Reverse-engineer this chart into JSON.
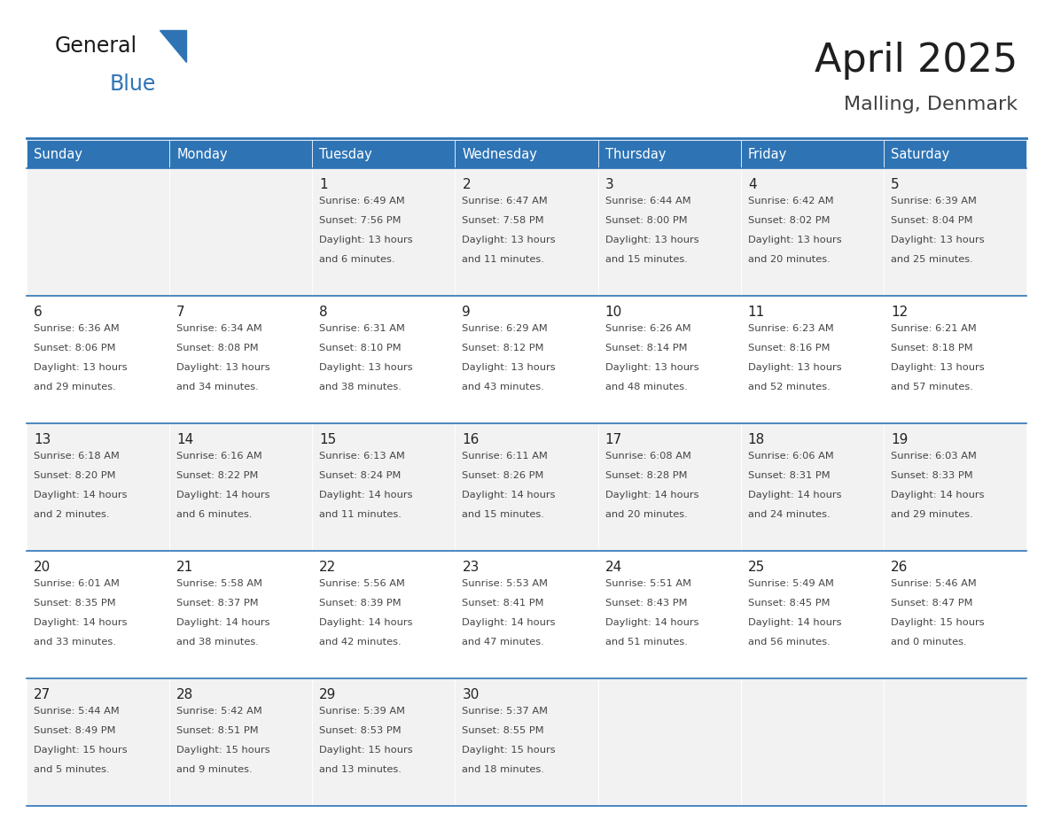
{
  "title": "April 2025",
  "subtitle": "Malling, Denmark",
  "header_color": "#2E74B5",
  "header_text_color": "#FFFFFF",
  "cell_bg_color": "#F2F2F2",
  "cell_bg_alt_color": "#FFFFFF",
  "border_color": "#2E74B5",
  "day_names": [
    "Sunday",
    "Monday",
    "Tuesday",
    "Wednesday",
    "Thursday",
    "Friday",
    "Saturday"
  ],
  "title_color": "#1F1F1F",
  "subtitle_color": "#404040",
  "logo_general_color": "#1A1A1A",
  "logo_blue_color": "#2E74B5",
  "days": [
    {
      "date": 1,
      "col": 2,
      "row": 0,
      "sunrise": "6:49 AM",
      "sunset": "7:56 PM",
      "daylight_h": "13 hours",
      "daylight_m": "and 6 minutes."
    },
    {
      "date": 2,
      "col": 3,
      "row": 0,
      "sunrise": "6:47 AM",
      "sunset": "7:58 PM",
      "daylight_h": "13 hours",
      "daylight_m": "and 11 minutes."
    },
    {
      "date": 3,
      "col": 4,
      "row": 0,
      "sunrise": "6:44 AM",
      "sunset": "8:00 PM",
      "daylight_h": "13 hours",
      "daylight_m": "and 15 minutes."
    },
    {
      "date": 4,
      "col": 5,
      "row": 0,
      "sunrise": "6:42 AM",
      "sunset": "8:02 PM",
      "daylight_h": "13 hours",
      "daylight_m": "and 20 minutes."
    },
    {
      "date": 5,
      "col": 6,
      "row": 0,
      "sunrise": "6:39 AM",
      "sunset": "8:04 PM",
      "daylight_h": "13 hours",
      "daylight_m": "and 25 minutes."
    },
    {
      "date": 6,
      "col": 0,
      "row": 1,
      "sunrise": "6:36 AM",
      "sunset": "8:06 PM",
      "daylight_h": "13 hours",
      "daylight_m": "and 29 minutes."
    },
    {
      "date": 7,
      "col": 1,
      "row": 1,
      "sunrise": "6:34 AM",
      "sunset": "8:08 PM",
      "daylight_h": "13 hours",
      "daylight_m": "and 34 minutes."
    },
    {
      "date": 8,
      "col": 2,
      "row": 1,
      "sunrise": "6:31 AM",
      "sunset": "8:10 PM",
      "daylight_h": "13 hours",
      "daylight_m": "and 38 minutes."
    },
    {
      "date": 9,
      "col": 3,
      "row": 1,
      "sunrise": "6:29 AM",
      "sunset": "8:12 PM",
      "daylight_h": "13 hours",
      "daylight_m": "and 43 minutes."
    },
    {
      "date": 10,
      "col": 4,
      "row": 1,
      "sunrise": "6:26 AM",
      "sunset": "8:14 PM",
      "daylight_h": "13 hours",
      "daylight_m": "and 48 minutes."
    },
    {
      "date": 11,
      "col": 5,
      "row": 1,
      "sunrise": "6:23 AM",
      "sunset": "8:16 PM",
      "daylight_h": "13 hours",
      "daylight_m": "and 52 minutes."
    },
    {
      "date": 12,
      "col": 6,
      "row": 1,
      "sunrise": "6:21 AM",
      "sunset": "8:18 PM",
      "daylight_h": "13 hours",
      "daylight_m": "and 57 minutes."
    },
    {
      "date": 13,
      "col": 0,
      "row": 2,
      "sunrise": "6:18 AM",
      "sunset": "8:20 PM",
      "daylight_h": "14 hours",
      "daylight_m": "and 2 minutes."
    },
    {
      "date": 14,
      "col": 1,
      "row": 2,
      "sunrise": "6:16 AM",
      "sunset": "8:22 PM",
      "daylight_h": "14 hours",
      "daylight_m": "and 6 minutes."
    },
    {
      "date": 15,
      "col": 2,
      "row": 2,
      "sunrise": "6:13 AM",
      "sunset": "8:24 PM",
      "daylight_h": "14 hours",
      "daylight_m": "and 11 minutes."
    },
    {
      "date": 16,
      "col": 3,
      "row": 2,
      "sunrise": "6:11 AM",
      "sunset": "8:26 PM",
      "daylight_h": "14 hours",
      "daylight_m": "and 15 minutes."
    },
    {
      "date": 17,
      "col": 4,
      "row": 2,
      "sunrise": "6:08 AM",
      "sunset": "8:28 PM",
      "daylight_h": "14 hours",
      "daylight_m": "and 20 minutes."
    },
    {
      "date": 18,
      "col": 5,
      "row": 2,
      "sunrise": "6:06 AM",
      "sunset": "8:31 PM",
      "daylight_h": "14 hours",
      "daylight_m": "and 24 minutes."
    },
    {
      "date": 19,
      "col": 6,
      "row": 2,
      "sunrise": "6:03 AM",
      "sunset": "8:33 PM",
      "daylight_h": "14 hours",
      "daylight_m": "and 29 minutes."
    },
    {
      "date": 20,
      "col": 0,
      "row": 3,
      "sunrise": "6:01 AM",
      "sunset": "8:35 PM",
      "daylight_h": "14 hours",
      "daylight_m": "and 33 minutes."
    },
    {
      "date": 21,
      "col": 1,
      "row": 3,
      "sunrise": "5:58 AM",
      "sunset": "8:37 PM",
      "daylight_h": "14 hours",
      "daylight_m": "and 38 minutes."
    },
    {
      "date": 22,
      "col": 2,
      "row": 3,
      "sunrise": "5:56 AM",
      "sunset": "8:39 PM",
      "daylight_h": "14 hours",
      "daylight_m": "and 42 minutes."
    },
    {
      "date": 23,
      "col": 3,
      "row": 3,
      "sunrise": "5:53 AM",
      "sunset": "8:41 PM",
      "daylight_h": "14 hours",
      "daylight_m": "and 47 minutes."
    },
    {
      "date": 24,
      "col": 4,
      "row": 3,
      "sunrise": "5:51 AM",
      "sunset": "8:43 PM",
      "daylight_h": "14 hours",
      "daylight_m": "and 51 minutes."
    },
    {
      "date": 25,
      "col": 5,
      "row": 3,
      "sunrise": "5:49 AM",
      "sunset": "8:45 PM",
      "daylight_h": "14 hours",
      "daylight_m": "and 56 minutes."
    },
    {
      "date": 26,
      "col": 6,
      "row": 3,
      "sunrise": "5:46 AM",
      "sunset": "8:47 PM",
      "daylight_h": "15 hours",
      "daylight_m": "and 0 minutes."
    },
    {
      "date": 27,
      "col": 0,
      "row": 4,
      "sunrise": "5:44 AM",
      "sunset": "8:49 PM",
      "daylight_h": "15 hours",
      "daylight_m": "and 5 minutes."
    },
    {
      "date": 28,
      "col": 1,
      "row": 4,
      "sunrise": "5:42 AM",
      "sunset": "8:51 PM",
      "daylight_h": "15 hours",
      "daylight_m": "and 9 minutes."
    },
    {
      "date": 29,
      "col": 2,
      "row": 4,
      "sunrise": "5:39 AM",
      "sunset": "8:53 PM",
      "daylight_h": "15 hours",
      "daylight_m": "and 13 minutes."
    },
    {
      "date": 30,
      "col": 3,
      "row": 4,
      "sunrise": "5:37 AM",
      "sunset": "8:55 PM",
      "daylight_h": "15 hours",
      "daylight_m": "and 18 minutes."
    }
  ]
}
